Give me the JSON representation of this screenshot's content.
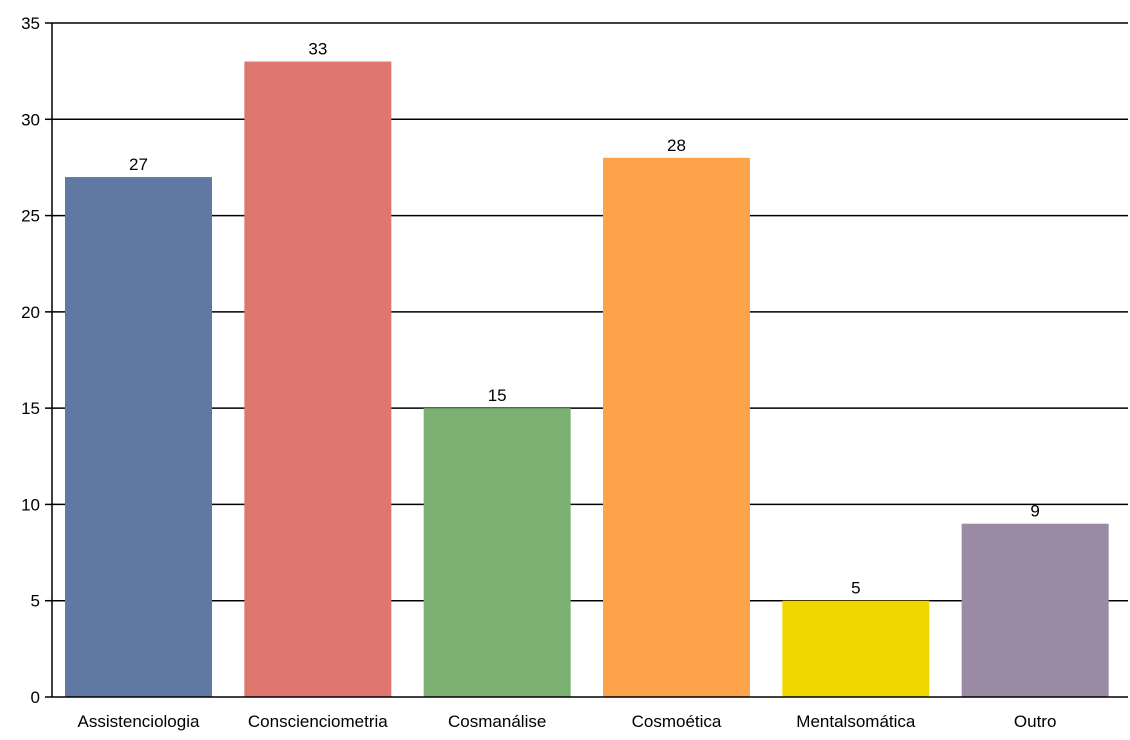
{
  "chart_data": {
    "type": "bar",
    "title": "",
    "xlabel": "",
    "ylabel": "",
    "categories": [
      "Assistenciologia",
      "Conscienciometria",
      "Cosmanálise",
      "Cosmoética",
      "Mentalsomática",
      "Outro"
    ],
    "values": [
      27,
      33,
      15,
      28,
      5,
      9
    ],
    "colors": [
      "#6079a3",
      "#df7670",
      "#7db073",
      "#fda44a",
      "#efd800",
      "#9b8aa3"
    ],
    "ylim": [
      0,
      35
    ],
    "yticks": [
      0,
      5,
      10,
      15,
      20,
      25,
      30,
      35
    ],
    "grid": true,
    "legend": "none"
  }
}
